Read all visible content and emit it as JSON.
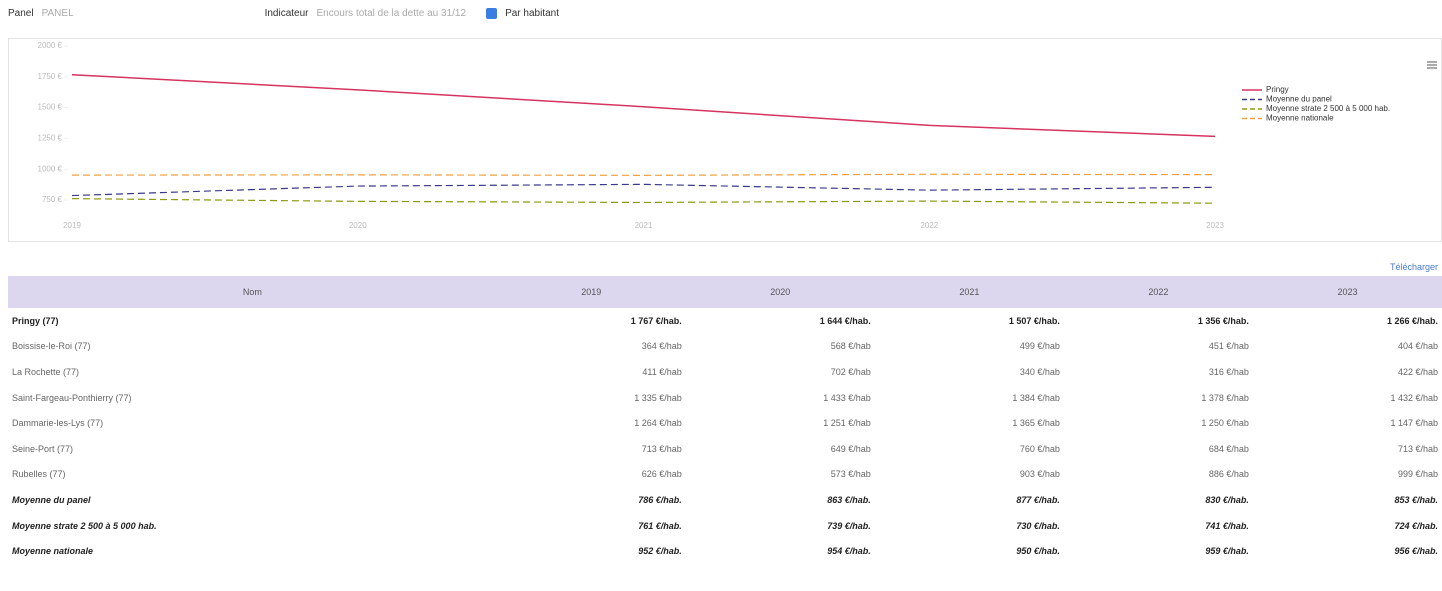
{
  "controls": {
    "panel_label": "Panel",
    "panel_placeholder": "PANEL",
    "indicator_label": "Indicateur",
    "indicator_value": "Encours total de la dette au 31/12",
    "checkbox_label": "Par habitant",
    "checkbox_checked": true
  },
  "chart_data": {
    "type": "line",
    "categories": [
      "2019",
      "2020",
      "2021",
      "2022",
      "2023"
    ],
    "series": [
      {
        "name": "Pringy",
        "color": "#d63360",
        "dashed": false,
        "values": [
          1767,
          1644,
          1507,
          1356,
          1266
        ]
      },
      {
        "name": "Moyenne du panel",
        "color": "#3a3a8c",
        "dashed": true,
        "values": [
          786,
          863,
          877,
          830,
          853
        ]
      },
      {
        "name": "Moyenne strate 2 500 à 5 000 hab.",
        "color": "#8c9a10",
        "dashed": true,
        "values": [
          761,
          739,
          730,
          741,
          724
        ]
      },
      {
        "name": "Moyenne nationale",
        "color": "#f0a040",
        "dashed": true,
        "values": [
          952,
          954,
          950,
          959,
          956
        ]
      }
    ],
    "ylim": [
      750,
      2000
    ],
    "yticks": [
      {
        "value": 750,
        "label": "750 €"
      },
      {
        "value": 1000,
        "label": "1000 €"
      },
      {
        "value": 1250,
        "label": "1250 €"
      },
      {
        "value": 1500,
        "label": "1500 €"
      },
      {
        "value": 1750,
        "label": "1750 €"
      },
      {
        "value": 2000,
        "label": "2000 €"
      }
    ],
    "grid": false,
    "legend": "right"
  },
  "download_label": "Télécharger",
  "table": {
    "header": [
      "Nom",
      "2019",
      "2020",
      "2021",
      "2022",
      "2023"
    ],
    "rows": [
      [
        "Pringy (77)",
        "1 767 €/hab.",
        "1 644 €/hab.",
        "1 507 €/hab.",
        "1 356 €/hab.",
        "1 266 €/hab."
      ],
      [
        "Boissise-le-Roi (77)",
        "364 €/hab",
        "568 €/hab",
        "499 €/hab",
        "451 €/hab",
        "404 €/hab"
      ],
      [
        "La Rochette (77)",
        "411 €/hab",
        "702 €/hab",
        "340 €/hab",
        "316 €/hab",
        "422 €/hab"
      ],
      [
        "Saint-Fargeau-Ponthierry (77)",
        "1 335 €/hab",
        "1 433 €/hab",
        "1 384 €/hab",
        "1 378 €/hab",
        "1 432 €/hab"
      ],
      [
        "Dammarie-les-Lys (77)",
        "1 264 €/hab",
        "1 251 €/hab",
        "1 365 €/hab",
        "1 250 €/hab",
        "1 147 €/hab"
      ],
      [
        "Seine-Port (77)",
        "713 €/hab",
        "649 €/hab",
        "760 €/hab",
        "684 €/hab",
        "713 €/hab"
      ],
      [
        "Rubelles (77)",
        "626 €/hab",
        "573 €/hab",
        "903 €/hab",
        "886 €/hab",
        "999 €/hab"
      ],
      [
        "Moyenne du panel",
        "786 €/hab.",
        "863 €/hab.",
        "877 €/hab.",
        "830 €/hab.",
        "853 €/hab."
      ],
      [
        "Moyenne strate 2 500 à 5 000 hab.",
        "761 €/hab.",
        "739 €/hab.",
        "730 €/hab.",
        "741 €/hab.",
        "724 €/hab."
      ],
      [
        "Moyenne nationale",
        "952 €/hab.",
        "954 €/hab.",
        "950 €/hab.",
        "959 €/hab.",
        "956 €/hab."
      ]
    ]
  }
}
